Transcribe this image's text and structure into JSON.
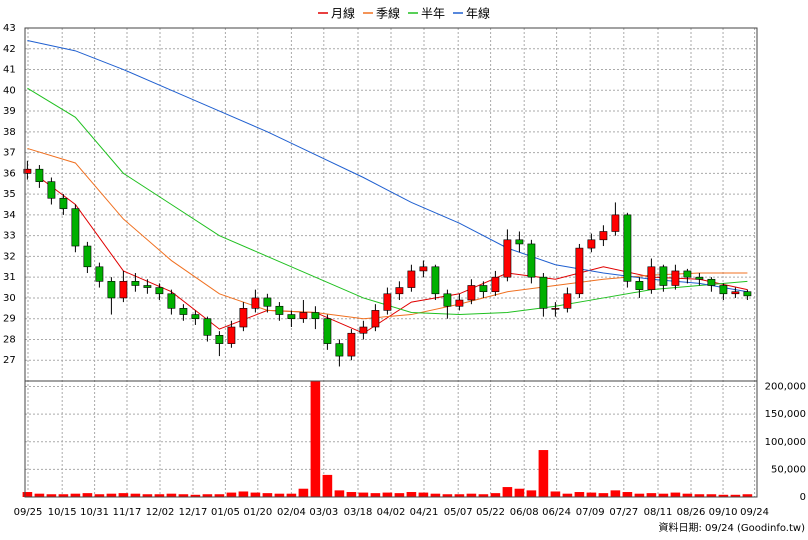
{
  "chart_data": {
    "type": "candlestick",
    "grid": true,
    "footer": "資料日期: 09/24  (Goodinfo.tw)",
    "xlim": [
      -0.2,
      60.8
    ],
    "xticks": [
      {
        "value": 0.05,
        "label": "09/25"
      },
      {
        "value": 2.9,
        "label": "10/15"
      },
      {
        "value": 5.6,
        "label": "10/31"
      },
      {
        "value": 8.3,
        "label": "11/17"
      },
      {
        "value": 11.05,
        "label": "12/02"
      },
      {
        "value": 13.8,
        "label": "12/17"
      },
      {
        "value": 16.5,
        "label": "01/05"
      },
      {
        "value": 19.2,
        "label": "01/20"
      },
      {
        "value": 22,
        "label": "02/04"
      },
      {
        "value": 24.7,
        "label": "03/03"
      },
      {
        "value": 27.55,
        "label": "03/18"
      },
      {
        "value": 30.3,
        "label": "04/02"
      },
      {
        "value": 33.05,
        "label": "04/21"
      },
      {
        "value": 35.9,
        "label": "05/07"
      },
      {
        "value": 38.6,
        "label": "05/22"
      },
      {
        "value": 41.4,
        "label": "06/08"
      },
      {
        "value": 44.1,
        "label": "06/24"
      },
      {
        "value": 46.9,
        "label": "07/09"
      },
      {
        "value": 49.7,
        "label": "07/27"
      },
      {
        "value": 52.55,
        "label": "08/11"
      },
      {
        "value": 55.3,
        "label": "08/26"
      },
      {
        "value": 57.97,
        "label": "09/10"
      },
      {
        "value": 60.6,
        "label": "09/24"
      }
    ],
    "ylim": [
      26,
      43
    ],
    "yticks": [
      27,
      28,
      29,
      30,
      31,
      32,
      33,
      34,
      35,
      36,
      37,
      38,
      39,
      40,
      41,
      42,
      43
    ],
    "series": [
      {
        "name": "月線",
        "color": "#e00000",
        "x": [
          1,
          4,
          8,
          12,
          16,
          20,
          24,
          28,
          32,
          36,
          40,
          44,
          48,
          52,
          56,
          60
        ],
        "values": [
          35.8,
          34.5,
          31.3,
          30.3,
          28.5,
          29.4,
          29.3,
          28.3,
          29.8,
          30.2,
          31.2,
          30.9,
          31.5,
          31.0,
          30.9,
          30.4
        ]
      },
      {
        "name": "季線",
        "color": "#f07020",
        "x": [
          0,
          4,
          8,
          12,
          16,
          20,
          24,
          28,
          32,
          36,
          40,
          44,
          48,
          52,
          56,
          60
        ],
        "values": [
          37.2,
          36.5,
          33.8,
          31.8,
          30.2,
          29.4,
          29.3,
          29.0,
          29.2,
          29.7,
          30.3,
          30.6,
          30.9,
          31.1,
          31.2,
          31.2
        ]
      },
      {
        "name": "半年",
        "color": "#20c020",
        "x": [
          0,
          4,
          8,
          12,
          16,
          20,
          24,
          28,
          32,
          36,
          40,
          44,
          48,
          52,
          56,
          60
        ],
        "values": [
          40.1,
          38.7,
          36.0,
          34.5,
          33.0,
          32.0,
          31.0,
          30.0,
          29.3,
          29.2,
          29.3,
          29.6,
          30.0,
          30.4,
          30.6,
          30.8
        ]
      },
      {
        "name": "年線",
        "color": "#2060d0",
        "x": [
          0,
          4,
          8,
          12,
          16,
          20,
          24,
          28,
          32,
          36,
          40,
          44,
          48,
          52,
          56,
          60
        ],
        "values": [
          42.4,
          41.9,
          41.0,
          40.0,
          39.0,
          38.0,
          36.9,
          35.8,
          34.6,
          33.6,
          32.4,
          31.6,
          31.2,
          30.9,
          30.7,
          30.3
        ]
      }
    ],
    "candles": {
      "up_color": "#ff0000",
      "down_color": "#00b000",
      "ohlc": [
        [
          36.0,
          36.6,
          35.7,
          36.2
        ],
        [
          36.2,
          36.4,
          35.3,
          35.6
        ],
        [
          35.6,
          35.8,
          34.5,
          34.8
        ],
        [
          34.8,
          35.0,
          34.0,
          34.3
        ],
        [
          34.3,
          34.5,
          32.2,
          32.5
        ],
        [
          32.5,
          32.7,
          31.2,
          31.5
        ],
        [
          31.5,
          31.7,
          30.5,
          30.8
        ],
        [
          30.8,
          31.0,
          29.2,
          30.0
        ],
        [
          30.0,
          31.3,
          29.8,
          30.8
        ],
        [
          30.8,
          31.2,
          30.3,
          30.6
        ],
        [
          30.6,
          30.9,
          30.2,
          30.5
        ],
        [
          30.5,
          30.7,
          29.9,
          30.2
        ],
        [
          30.2,
          30.4,
          29.2,
          29.5
        ],
        [
          29.5,
          29.7,
          28.9,
          29.2
        ],
        [
          29.2,
          29.4,
          28.7,
          29.0
        ],
        [
          29.0,
          29.1,
          27.9,
          28.2
        ],
        [
          28.2,
          28.4,
          27.2,
          27.8
        ],
        [
          27.8,
          28.9,
          27.6,
          28.6
        ],
        [
          28.6,
          29.8,
          28.4,
          29.5
        ],
        [
          29.5,
          30.4,
          29.3,
          30.0
        ],
        [
          30.0,
          30.2,
          29.3,
          29.6
        ],
        [
          29.6,
          29.8,
          28.9,
          29.2
        ],
        [
          29.2,
          29.4,
          28.6,
          29.0
        ],
        [
          29.0,
          29.9,
          28.8,
          29.3
        ],
        [
          29.3,
          29.6,
          28.5,
          29.0
        ],
        [
          29.0,
          29.2,
          27.5,
          27.8
        ],
        [
          27.8,
          28.0,
          26.7,
          27.2
        ],
        [
          27.2,
          28.5,
          27.0,
          28.3
        ],
        [
          28.3,
          28.9,
          28.0,
          28.6
        ],
        [
          28.6,
          29.7,
          28.4,
          29.4
        ],
        [
          29.4,
          30.5,
          29.2,
          30.2
        ],
        [
          30.2,
          30.8,
          29.9,
          30.5
        ],
        [
          30.5,
          31.6,
          30.3,
          31.3
        ],
        [
          31.3,
          31.8,
          31.0,
          31.5
        ],
        [
          31.5,
          31.6,
          29.9,
          30.2
        ],
        [
          30.2,
          30.4,
          29.0,
          29.6
        ],
        [
          29.6,
          30.2,
          29.4,
          29.9
        ],
        [
          29.9,
          30.9,
          29.7,
          30.6
        ],
        [
          30.6,
          30.8,
          30.0,
          30.3
        ],
        [
          30.3,
          31.3,
          30.1,
          31.0
        ],
        [
          31.0,
          33.3,
          30.8,
          32.8
        ],
        [
          32.8,
          33.2,
          32.2,
          32.6
        ],
        [
          32.6,
          32.8,
          30.7,
          31.0
        ],
        [
          31.0,
          31.2,
          29.1,
          29.5
        ],
        [
          29.5,
          29.8,
          29.1,
          29.5
        ],
        [
          29.5,
          30.5,
          29.3,
          30.2
        ],
        [
          30.2,
          32.6,
          30.0,
          32.4
        ],
        [
          32.4,
          33.1,
          32.2,
          32.8
        ],
        [
          32.8,
          33.5,
          32.5,
          33.2
        ],
        [
          33.2,
          34.6,
          33.0,
          34.0
        ],
        [
          34.0,
          34.1,
          30.5,
          30.8
        ],
        [
          30.8,
          31.0,
          30.0,
          30.4
        ],
        [
          30.4,
          31.9,
          30.2,
          31.5
        ],
        [
          31.5,
          31.6,
          30.3,
          30.6
        ],
        [
          30.6,
          31.6,
          30.4,
          31.3
        ],
        [
          31.3,
          31.4,
          30.7,
          31.0
        ],
        [
          31.0,
          31.2,
          30.6,
          30.9
        ],
        [
          30.9,
          31.0,
          30.3,
          30.6
        ],
        [
          30.6,
          30.7,
          29.9,
          30.2
        ],
        [
          30.2,
          30.5,
          30.0,
          30.3
        ],
        [
          30.3,
          30.4,
          29.9,
          30.1
        ]
      ]
    },
    "volume": {
      "color": "#ff0000",
      "ylim": [
        0,
        210000
      ],
      "yticks": [
        0,
        {
          "value": 50000,
          "label": "50,000"
        },
        {
          "value": 100000,
          "label": "100,000"
        },
        {
          "value": 150000,
          "label": "150,000"
        },
        {
          "value": 200000,
          "label": "200,000"
        }
      ],
      "values": [
        9000,
        6000,
        5000,
        5000,
        6000,
        7000,
        5000,
        6000,
        7000,
        6000,
        5000,
        5000,
        6000,
        5000,
        4000,
        5000,
        5000,
        8000,
        10000,
        8000,
        7000,
        6000,
        6000,
        15000,
        210000,
        40000,
        12000,
        9000,
        8000,
        7000,
        8000,
        7000,
        9000,
        8000,
        6000,
        5000,
        5000,
        6000,
        5000,
        7000,
        18000,
        15000,
        12000,
        85000,
        10000,
        6000,
        9000,
        8000,
        7000,
        12000,
        9000,
        6000,
        7000,
        6000,
        8000,
        6000,
        5000,
        5000,
        4000,
        4000,
        5000
      ]
    }
  }
}
